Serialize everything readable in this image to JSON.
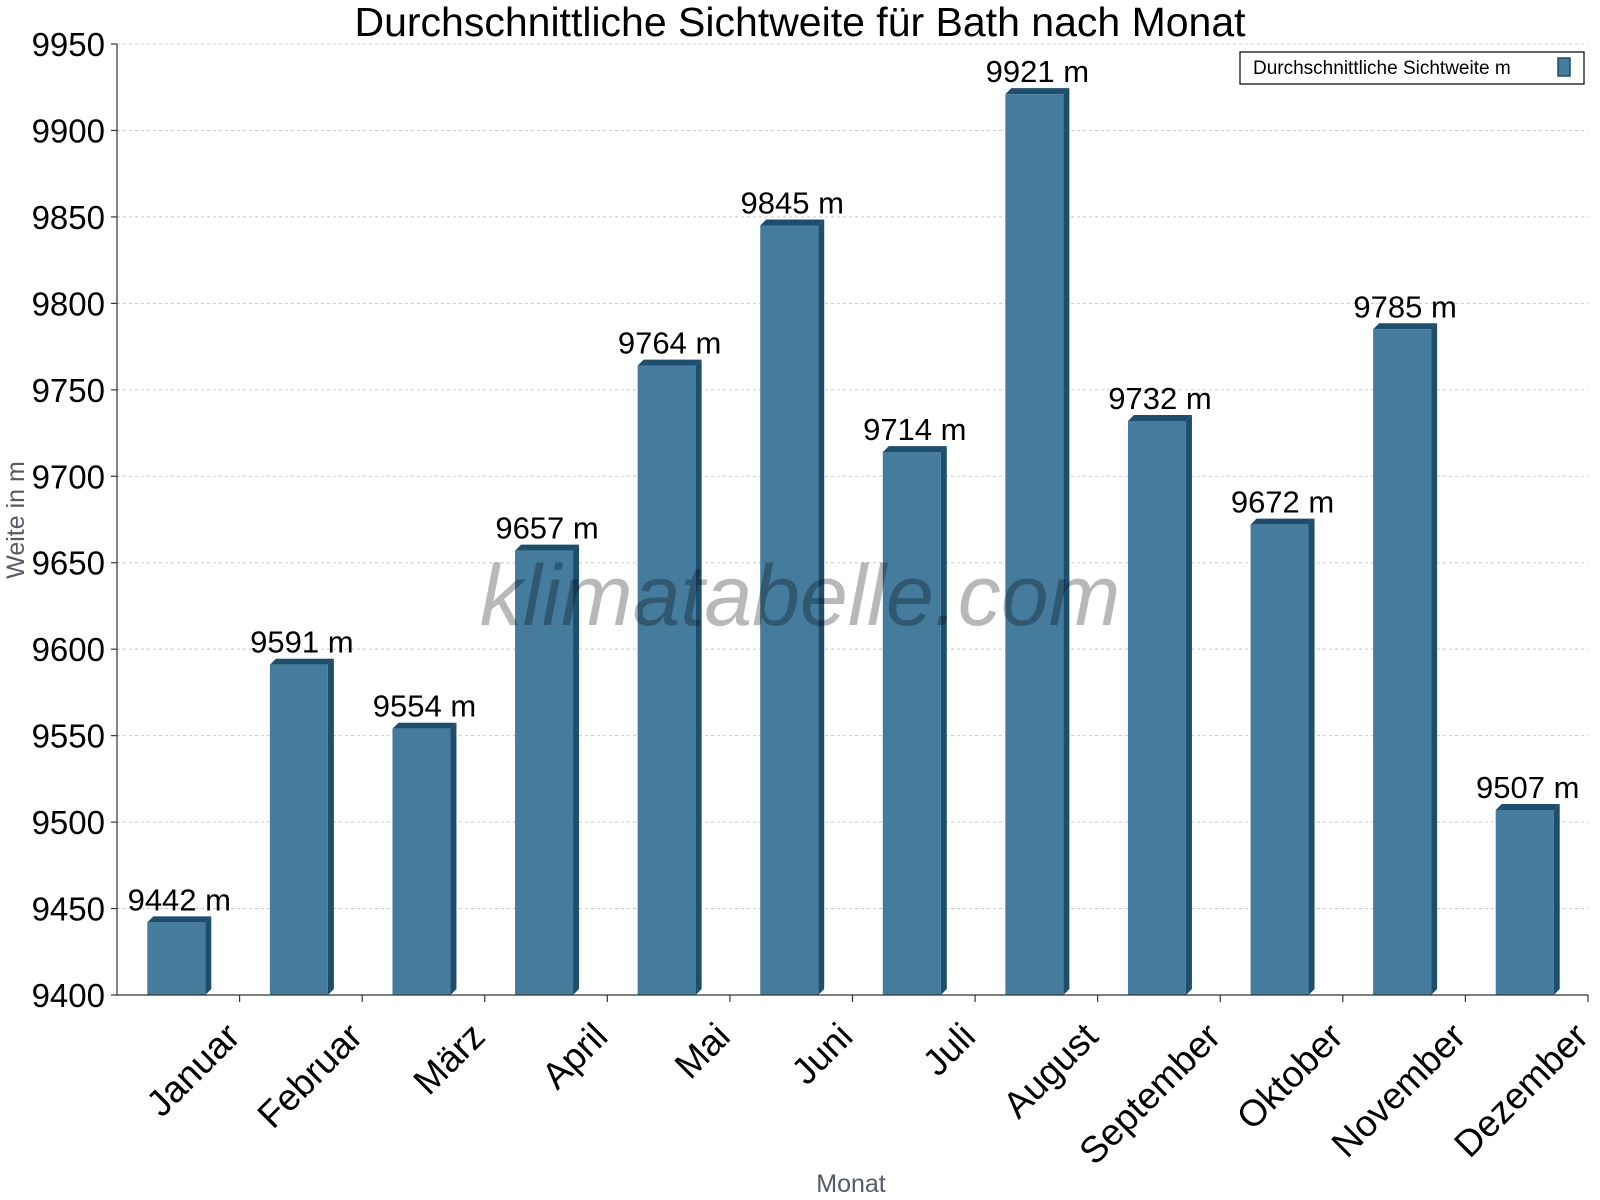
{
  "chart_data": {
    "type": "bar",
    "title": "Durchschnittliche Sichtweite für Bath nach Monat",
    "xlabel": "Monat",
    "ylabel": "Weite in m",
    "ylim": [
      9400,
      9950
    ],
    "yticks": [
      9400,
      9450,
      9500,
      9550,
      9600,
      9650,
      9700,
      9750,
      9800,
      9850,
      9900,
      9950
    ],
    "grid": true,
    "legend_position": "top-right",
    "categories": [
      "Januar",
      "Februar",
      "März",
      "April",
      "Mai",
      "Juni",
      "Juli",
      "August",
      "September",
      "Oktober",
      "November",
      "Dezember"
    ],
    "series": [
      {
        "name": "Durchschnittliche Sichtweite m",
        "values": [
          9442,
          9591,
          9554,
          9657,
          9764,
          9845,
          9714,
          9921,
          9732,
          9672,
          9785,
          9507
        ],
        "labels": [
          "9442 m",
          "9591 m",
          "9554 m",
          "9657 m",
          "9764 m",
          "9845 m",
          "9714 m",
          "9921 m",
          "9732 m",
          "9672 m",
          "9785 m",
          "9507 m"
        ],
        "color": "#457b9d",
        "edge_color": "#1d4e6e"
      }
    ],
    "watermark": "klimatabelle.com"
  }
}
